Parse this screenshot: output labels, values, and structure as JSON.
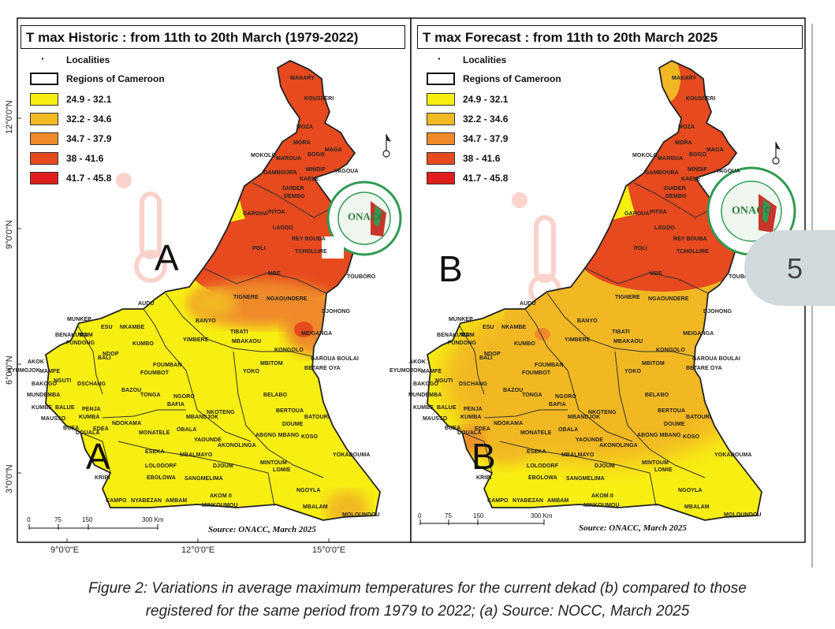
{
  "panels": [
    {
      "id": "a",
      "title": "T max Historic : from 11th to 20th March (1979-2022)",
      "panel_letter": "A",
      "inset_letter": "A",
      "source": "Source: ONACC, March 2025"
    },
    {
      "id": "b",
      "title": "T max Forecast : from 11th to 20th March 2025",
      "panel_letter": "B",
      "inset_letter": "B",
      "source": "Source: ONACC, March 2025"
    }
  ],
  "legend": {
    "localities": "Localities",
    "regions": "Regions of Cameroon",
    "classes": [
      {
        "label": "24.9 - 32.1",
        "color": "#f7ee12"
      },
      {
        "label": "32.2 - 34.6",
        "color": "#f2b824"
      },
      {
        "label": "34.7 - 37.9",
        "color": "#ef8a2a"
      },
      {
        "label": "38 - 41.6",
        "color": "#e64a1e"
      },
      {
        "label": "41.7 - 45.8",
        "color": "#e11d1d"
      }
    ]
  },
  "localities": [
    "MAKARY",
    "KOUSSERI",
    "MOZA",
    "MORA",
    "BOGO",
    "MAGA",
    "MOKOLO",
    "MAROUA",
    "MINDIF",
    "YAGOUA",
    "GAMBOURA",
    "KAELE",
    "GUIDER",
    "DEMBO",
    "GAROUA",
    "PITOA",
    "LAGDO",
    "REY BOUBA",
    "POLI",
    "TCHOLLIRE",
    "MBE",
    "TOUBORO",
    "TIGNERE",
    "NGAOUNDERE",
    "DJOHONG",
    "MEIGANGA",
    "AUDU",
    "MUNKEP",
    "ESU",
    "NKAMBE",
    "BENAKUMA",
    "WUM",
    "FUNDONG",
    "BANYO",
    "TIBATI",
    "YIMBERE",
    "MBAKAOU",
    "NDOP",
    "BALI",
    "KUMBO",
    "FOUMBAN",
    "KONGOLO",
    "GAROUA BOULAI",
    "MBITOM",
    "BETARE OYA",
    "AKOK",
    "EYUMOJOK",
    "MAMFE",
    "FOUMBOT",
    "DSCHANG",
    "YOKO",
    "NGUTI",
    "BAKOGO",
    "BAZOU",
    "TONGA",
    "NGORO",
    "MUNDEMBA",
    "BAFIA",
    "BELABO",
    "KUMBE",
    "BALUE",
    "PENJA",
    "MBANDJOK",
    "NKOTENG",
    "BERTOUA",
    "BATOURI",
    "MAUSSO",
    "KUMBA",
    "NDOKAMA",
    "DOUME",
    "BUEA",
    "EDEA",
    "DOUALA",
    "MONATELE",
    "OBALA",
    "YAOUNDE",
    "ABONG MBANG",
    "KOSO",
    "AKONOLINGA",
    "ESEKA",
    "MBALMAYO",
    "LOLODORF",
    "DJOUM",
    "MINTOUM",
    "YOKADOUMA",
    "KRIBI",
    "EBOLOWA",
    "SANGMELIMA",
    "LOMIE",
    "CAMPO",
    "NYABEZAN",
    "AMBAM",
    "AKOM II",
    "MINKOUMOU",
    "NGOYLA",
    "MBALAM",
    "MOLOUNDOU"
  ],
  "coordinates": {
    "lat": [
      "12°0'0\"N",
      "9°0'0\"N",
      "6°0'0\"N",
      "3°0'0\"N"
    ],
    "lon": [
      "9°0'0\"E",
      "12°0'0\"E",
      "15°0'0\"E"
    ]
  },
  "scale": {
    "ticks": [
      "0",
      "75",
      "150",
      "300 Km"
    ]
  },
  "logo_text": "ONACC",
  "page_number": "5",
  "caption_line1": "Figure 2: Variations in average maximum temperatures for the current dekad (b) compared to those",
  "caption_line2": "registered for the same period from 1979 to 2022; (a) Source: NOCC, March 2025"
}
